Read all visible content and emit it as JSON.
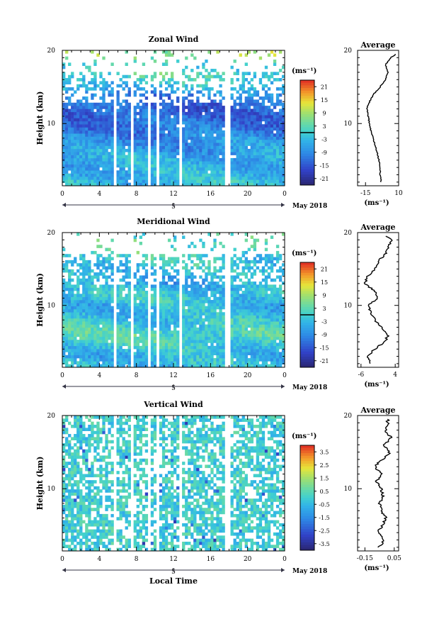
{
  "figure": {
    "x_tick_labels": [
      "0",
      "4",
      "8",
      "12",
      "16",
      "20",
      "0"
    ],
    "day_label": "5",
    "date_label": "May 2018",
    "xlabel": "Local Time",
    "ylabel": "Height (km)",
    "colorbar_unit": "(ms⁻¹)",
    "avg_title": "Average",
    "avg_unit": "(ms⁻¹)"
  },
  "chart_data": [
    {
      "type": "heatmap",
      "title": "Zonal Wind",
      "xlabel": "Local Time",
      "ylabel": "Height (km)",
      "x_range_hours": [
        0,
        24
      ],
      "y_range_km": [
        1.5,
        20
      ],
      "y_ticks": [
        "10",
        "20"
      ],
      "colorbar": {
        "ticks": [
          "21",
          "15",
          "9",
          "3",
          "-3",
          "-9",
          "-15",
          "-21"
        ],
        "range": [
          -24,
          24
        ],
        "zero_line": true
      },
      "data_gaps_hours": [
        [
          5.6,
          5.9
        ],
        [
          7.5,
          7.8
        ],
        [
          9.2,
          9.4
        ],
        [
          10.3,
          10.6
        ],
        [
          12.6,
          12.9
        ],
        [
          17.6,
          18.1
        ]
      ],
      "average_profile": {
        "title": "Average",
        "x_ticks": [
          "-15",
          "10"
        ],
        "x_range": [
          -21,
          10
        ],
        "heights_km": [
          2,
          3,
          4,
          5,
          6,
          7,
          8,
          9,
          10,
          11,
          12,
          13,
          14,
          15,
          16,
          17,
          18,
          19,
          19.5
        ],
        "values": [
          -3,
          -4,
          -4,
          -5,
          -6,
          -8,
          -9,
          -11,
          -12,
          -13,
          -14,
          -12,
          -9,
          -4,
          0,
          2,
          0,
          4,
          8
        ]
      }
    },
    {
      "type": "heatmap",
      "title": "Meridional Wind",
      "xlabel": "Local Time",
      "ylabel": "Height (km)",
      "x_range_hours": [
        0,
        24
      ],
      "y_range_km": [
        1.5,
        20
      ],
      "y_ticks": [
        "10",
        "20"
      ],
      "colorbar": {
        "ticks": [
          "21",
          "15",
          "9",
          "3",
          "-3",
          "-9",
          "-15",
          "-21"
        ],
        "range": [
          -24,
          24
        ],
        "zero_line": true
      },
      "data_gaps_hours": [
        [
          5.6,
          5.9
        ],
        [
          7.5,
          7.8
        ],
        [
          9.2,
          9.4
        ],
        [
          10.3,
          10.6
        ],
        [
          12.6,
          12.9
        ],
        [
          17.6,
          18.1
        ]
      ],
      "average_profile": {
        "title": "Average",
        "x_ticks": [
          "-6",
          "4"
        ],
        "x_range": [
          -7,
          5
        ],
        "heights_km": [
          2,
          3,
          4,
          5,
          6,
          7,
          8,
          9,
          10,
          11,
          12,
          13,
          14,
          15,
          16,
          17,
          18,
          19,
          19.5
        ],
        "values": [
          -3,
          -4,
          -2,
          1,
          2,
          0,
          -2,
          -3,
          -4,
          -1,
          -2,
          -5,
          -4,
          -2,
          -1,
          1,
          2,
          3,
          1
        ]
      }
    },
    {
      "type": "heatmap",
      "title": "Vertical Wind",
      "xlabel": "Local Time",
      "ylabel": "Height (km)",
      "x_range_hours": [
        0,
        24
      ],
      "y_range_km": [
        1.5,
        20
      ],
      "y_ticks": [
        "10",
        "20"
      ],
      "colorbar": {
        "ticks": [
          "3.5",
          "2.5",
          "1.5",
          "0.5",
          "-0.5",
          "-1.5",
          "-2.5",
          "-3.5"
        ],
        "range": [
          -4,
          4
        ],
        "zero_line": false
      },
      "data_gaps_hours": [
        [
          5.6,
          5.9
        ],
        [
          7.5,
          7.8
        ],
        [
          9.2,
          9.4
        ],
        [
          10.3,
          10.6
        ],
        [
          12.6,
          12.9
        ],
        [
          17.6,
          18.1
        ]
      ],
      "average_profile": {
        "title": "Average",
        "x_ticks": [
          "-0.15",
          "0.05"
        ],
        "x_range": [
          -0.2,
          0.08
        ],
        "heights_km": [
          2,
          3,
          4,
          5,
          6,
          7,
          8,
          9,
          10,
          11,
          12,
          13,
          14,
          15,
          16,
          17,
          18,
          19,
          19.5
        ],
        "values": [
          -0.05,
          -0.02,
          -0.06,
          -0.03,
          -0.01,
          -0.04,
          -0.05,
          -0.03,
          -0.04,
          -0.07,
          -0.04,
          -0.08,
          -0.03,
          0.02,
          -0.02,
          0.03,
          -0.01,
          0.01,
          0.0
        ]
      }
    }
  ]
}
